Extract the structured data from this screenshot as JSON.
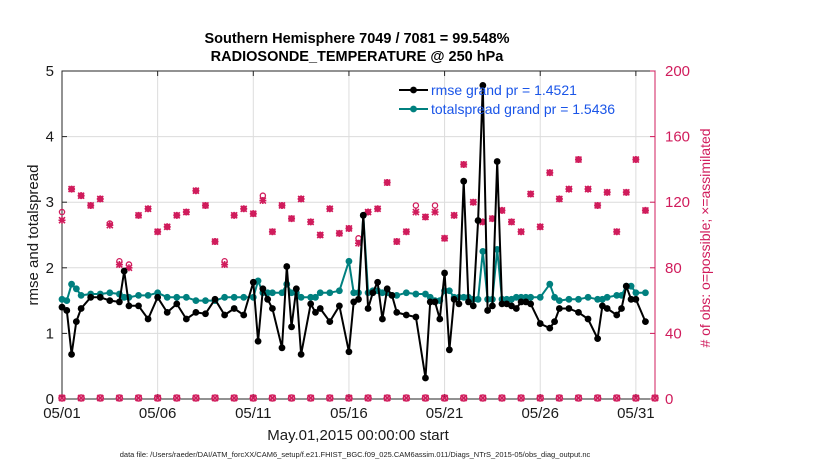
{
  "chart_data": {
    "type": "line",
    "title_line1": "Southern Hemisphere 7049 / 7081 = 99.548%",
    "title_line2": "RADIOSONDE_TEMPERATURE @ 250 hPa",
    "xlabel": "May.01,2015 00:00:00 start",
    "ylabel_left": "rmse and totalspread",
    "ylabel_right": "# of obs: o=possible; ×=assimilated",
    "footer": "data file: /Users/raeder/DAI/ATM_forcXX/CAM6_setup/f.e21.FHIST_BGC.f09_025.CAM6assim.011/Diags_NTrS_2015-05/obs_diag_output.nc",
    "x_ticks": [
      "05/01",
      "05/06",
      "05/11",
      "05/16",
      "05/21",
      "05/26",
      "05/31"
    ],
    "x_tick_days": [
      1,
      6,
      11,
      16,
      21,
      26,
      31
    ],
    "xlim": [
      1,
      32
    ],
    "ylim_left": [
      0,
      5
    ],
    "yticks_left": [
      "0",
      "1",
      "2",
      "3",
      "4",
      "5"
    ],
    "ylim_right": [
      0,
      200
    ],
    "yticks_right": [
      "0",
      "40",
      "80",
      "120",
      "160",
      "200"
    ],
    "colors": {
      "rmse": "#000000",
      "spread": "#00807f",
      "obs": "#d01c5c",
      "legend_text": "#1a55e8"
    },
    "legend": [
      "rmse grand pr = 1.4521",
      "totalspread grand pr = 1.5436"
    ],
    "x": [
      1.0,
      1.25,
      1.5,
      1.75,
      2.0,
      2.5,
      3.0,
      3.5,
      4.0,
      4.25,
      4.5,
      5.0,
      5.5,
      6.0,
      6.5,
      7.0,
      7.5,
      8.0,
      8.5,
      9.0,
      9.5,
      10.0,
      10.5,
      11.0,
      11.25,
      11.5,
      11.75,
      12.0,
      12.5,
      12.75,
      13.0,
      13.25,
      13.5,
      14.0,
      14.25,
      14.5,
      15.0,
      15.5,
      16.0,
      16.25,
      16.5,
      16.75,
      17.0,
      17.25,
      17.5,
      17.75,
      18.0,
      18.25,
      18.5,
      19.0,
      19.5,
      20.0,
      20.25,
      20.5,
      20.75,
      21.0,
      21.25,
      21.5,
      21.75,
      22.0,
      22.25,
      22.5,
      22.75,
      23.0,
      23.25,
      23.5,
      23.75,
      24.0,
      24.25,
      24.5,
      24.75,
      25.0,
      25.25,
      25.5,
      26.0,
      26.5,
      26.75,
      27.0,
      27.5,
      28.0,
      28.5,
      29.0,
      29.25,
      29.5,
      30.0,
      30.25,
      30.5,
      30.75,
      31.0,
      31.5
    ],
    "series": [
      {
        "name": "rmse",
        "values": [
          1.4,
          1.35,
          0.68,
          1.18,
          1.38,
          1.55,
          1.55,
          1.5,
          1.48,
          1.95,
          1.42,
          1.42,
          1.22,
          1.55,
          1.32,
          1.45,
          1.22,
          1.32,
          1.3,
          1.52,
          1.28,
          1.38,
          1.28,
          1.78,
          0.88,
          1.68,
          1.52,
          1.38,
          0.78,
          2.02,
          1.1,
          1.68,
          0.68,
          1.45,
          1.32,
          1.38,
          1.18,
          1.42,
          0.72,
          1.48,
          1.52,
          2.8,
          1.38,
          1.62,
          1.78,
          1.22,
          1.68,
          1.58,
          1.32,
          1.28,
          1.25,
          0.32,
          1.48,
          1.48,
          1.22,
          1.92,
          0.75,
          1.52,
          1.45,
          3.32,
          1.48,
          1.42,
          2.72,
          4.78,
          1.35,
          1.42,
          3.62,
          1.45,
          1.45,
          1.42,
          1.38,
          1.48,
          1.48,
          1.45,
          1.15,
          1.08,
          1.18,
          1.38,
          1.38,
          1.32,
          1.22,
          0.92,
          1.42,
          1.38,
          1.28,
          1.38,
          1.72,
          1.52,
          1.52,
          1.18
        ]
      },
      {
        "name": "totalspread",
        "values": [
          1.52,
          1.5,
          1.75,
          1.68,
          1.58,
          1.6,
          1.6,
          1.62,
          1.6,
          1.55,
          1.55,
          1.58,
          1.58,
          1.62,
          1.55,
          1.55,
          1.55,
          1.5,
          1.5,
          1.5,
          1.55,
          1.55,
          1.55,
          1.55,
          1.8,
          1.62,
          1.62,
          1.62,
          1.62,
          1.75,
          1.62,
          1.62,
          1.55,
          1.55,
          1.55,
          1.62,
          1.62,
          1.65,
          2.1,
          1.62,
          1.62,
          2.8,
          1.62,
          1.65,
          1.65,
          1.62,
          1.62,
          1.58,
          1.58,
          1.62,
          1.6,
          1.6,
          1.55,
          1.5,
          1.5,
          1.65,
          1.65,
          1.55,
          1.55,
          1.55,
          1.55,
          1.52,
          1.52,
          2.25,
          1.52,
          1.52,
          2.28,
          1.52,
          1.52,
          1.52,
          1.55,
          1.55,
          1.55,
          1.55,
          1.55,
          1.75,
          1.55,
          1.5,
          1.52,
          1.52,
          1.55,
          1.52,
          1.52,
          1.55,
          1.58,
          1.58,
          1.72,
          1.72,
          1.62,
          1.62
        ]
      }
    ],
    "obs_possible_x": [
      1.0,
      1.5,
      2.0,
      2.5,
      3.0,
      3.5,
      4.0,
      4.5,
      5.0,
      5.5,
      6.0,
      6.5,
      7.0,
      7.5,
      8.0,
      8.5,
      9.0,
      9.5,
      10.0,
      10.5,
      11.0,
      11.5,
      12.0,
      12.5,
      13.0,
      13.5,
      14.0,
      14.5,
      15.0,
      15.5,
      16.0,
      16.5,
      17.0,
      17.5,
      18.0,
      18.5,
      19.0,
      19.5,
      20.0,
      20.5,
      21.0,
      21.5,
      22.0,
      22.5,
      23.0,
      23.5,
      24.0,
      24.5,
      25.0,
      25.5,
      26.0,
      26.5,
      27.0,
      27.5,
      28.0,
      28.5,
      29.0,
      29.5,
      30.0,
      30.5,
      31.0,
      31.5
    ],
    "obs_possible": [
      114,
      128,
      124,
      118,
      122,
      107,
      84,
      82,
      112,
      116,
      102,
      105,
      112,
      114,
      127,
      118,
      96,
      84,
      112,
      116,
      113,
      124,
      102,
      118,
      110,
      122,
      108,
      100,
      116,
      101,
      104,
      98,
      114,
      116,
      132,
      96,
      102,
      118,
      111,
      118,
      98,
      112,
      143,
      120,
      108,
      110,
      115,
      108,
      102,
      125,
      105,
      138,
      122,
      128,
      146,
      128,
      118,
      126,
      102,
      126,
      146,
      115
    ],
    "obs_assimilated_x": [
      1.0,
      1.5,
      2.0,
      2.5,
      3.0,
      3.5,
      4.0,
      4.5,
      5.0,
      5.5,
      6.0,
      6.5,
      7.0,
      7.5,
      8.0,
      8.5,
      9.0,
      9.5,
      10.0,
      10.5,
      11.0,
      11.5,
      12.0,
      12.5,
      13.0,
      13.5,
      14.0,
      14.5,
      15.0,
      15.5,
      16.0,
      16.5,
      17.0,
      17.5,
      18.0,
      18.5,
      19.0,
      19.5,
      20.0,
      20.5,
      21.0,
      21.5,
      22.0,
      22.5,
      23.0,
      23.5,
      24.0,
      24.5,
      25.0,
      25.5,
      26.0,
      26.5,
      27.0,
      27.5,
      28.0,
      28.5,
      29.0,
      29.5,
      30.0,
      30.5,
      31.0,
      31.5
    ],
    "obs_assimilated": [
      109,
      128,
      124,
      118,
      122,
      106,
      82,
      80,
      112,
      116,
      102,
      105,
      112,
      114,
      127,
      118,
      96,
      82,
      112,
      116,
      113,
      121,
      102,
      118,
      110,
      122,
      108,
      100,
      116,
      101,
      104,
      95,
      114,
      116,
      132,
      96,
      102,
      114,
      111,
      114,
      98,
      112,
      143,
      120,
      108,
      110,
      115,
      108,
      102,
      125,
      105,
      138,
      122,
      128,
      146,
      128,
      118,
      126,
      102,
      126,
      146,
      115
    ],
    "obs_zero_x": [
      1,
      2,
      3,
      4,
      5,
      6,
      7,
      8,
      9,
      10,
      11,
      12,
      13,
      14,
      15,
      16,
      17,
      18,
      19,
      20,
      21,
      22,
      23,
      24,
      25,
      26,
      27,
      28,
      29,
      30,
      31,
      32
    ],
    "obs_zero": [
      0,
      0,
      0,
      0,
      0,
      0,
      0,
      0,
      0,
      0,
      0,
      0,
      0,
      0,
      0,
      0,
      0,
      0,
      0,
      0,
      0,
      0,
      0,
      0,
      0,
      0,
      0,
      0,
      0,
      0,
      0,
      0
    ]
  }
}
